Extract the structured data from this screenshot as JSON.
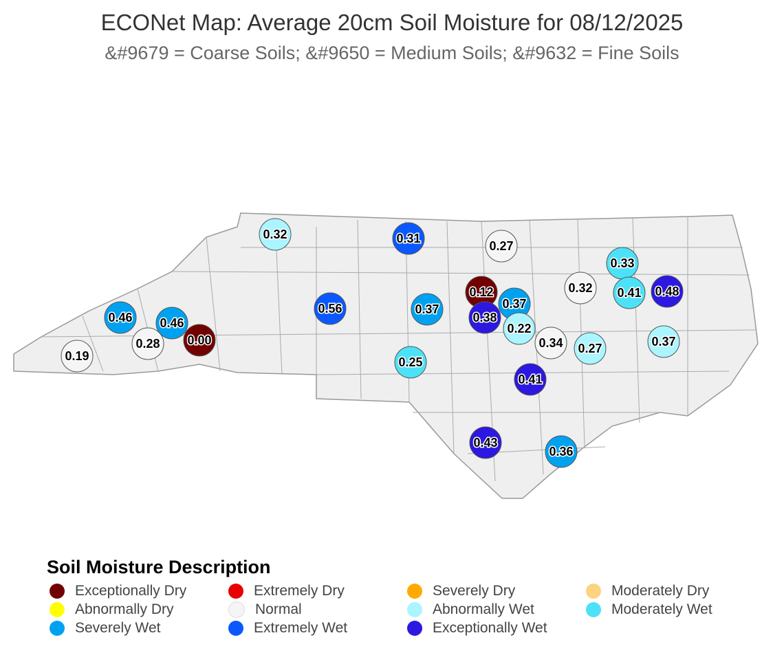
{
  "title": "ECONet Map: Average 20cm Soil Moisture for 08/12/2025",
  "subtitle": "&#9679 = Coarse Soils; &#9650 = Medium Soils; &#9632 = Fine Soils",
  "legend": {
    "title": "Soil Moisture Description",
    "items": [
      {
        "label": "Exceptionally Dry",
        "color": "#730000"
      },
      {
        "label": "Extremely Dry",
        "color": "#e60000"
      },
      {
        "label": "Severely Dry",
        "color": "#ffaa00"
      },
      {
        "label": "Moderately Dry",
        "color": "#fcd37f"
      },
      {
        "label": "Abnormally Dry",
        "color": "#ffff00"
      },
      {
        "label": "Normal",
        "color": "#f5f5f5"
      },
      {
        "label": "Abnormally Wet",
        "color": "#aaf5ff"
      },
      {
        "label": "Moderately Wet",
        "color": "#4de1f7"
      },
      {
        "label": "Severely Wet",
        "color": "#00a2f0"
      },
      {
        "label": "Extremely Wet",
        "color": "#0b58ff"
      },
      {
        "label": "Exceptionally Wet",
        "color": "#2c18e0"
      }
    ]
  },
  "markers": [
    {
      "value": "0.32",
      "category": "Abnormally Wet"
    },
    {
      "value": "0.31",
      "category": "Extremely Wet"
    },
    {
      "value": "0.27",
      "category": "Normal"
    },
    {
      "value": "0.33",
      "category": "Moderately Wet"
    },
    {
      "value": "0.32",
      "category": "Normal"
    },
    {
      "value": "0.41",
      "category": "Moderately Wet"
    },
    {
      "value": "0.48",
      "category": "Exceptionally Wet"
    },
    {
      "value": "0.56",
      "category": "Extremely Wet"
    },
    {
      "value": "0.37",
      "category": "Severely Wet"
    },
    {
      "value": "0.12",
      "category": "Exceptionally Dry"
    },
    {
      "value": "0.38",
      "category": "Exceptionally Wet"
    },
    {
      "value": "0.37",
      "category": "Severely Wet"
    },
    {
      "value": "0.22",
      "category": "Abnormally Wet"
    },
    {
      "value": "0.46",
      "category": "Severely Wet"
    },
    {
      "value": "0.28",
      "category": "Normal"
    },
    {
      "value": "0.46",
      "category": "Severely Wet"
    },
    {
      "value": "0.00",
      "category": "Exceptionally Dry"
    },
    {
      "value": "0.19",
      "category": "Normal"
    },
    {
      "value": "0.25",
      "category": "Moderately Wet"
    },
    {
      "value": "0.34",
      "category": "Normal"
    },
    {
      "value": "0.27",
      "category": "Abnormally Wet"
    },
    {
      "value": "0.37",
      "category": "Abnormally Wet"
    },
    {
      "value": "0.41",
      "category": "Exceptionally Wet"
    },
    {
      "value": "0.43",
      "category": "Exceptionally Wet"
    },
    {
      "value": "0.36",
      "category": "Severely Wet"
    }
  ]
}
